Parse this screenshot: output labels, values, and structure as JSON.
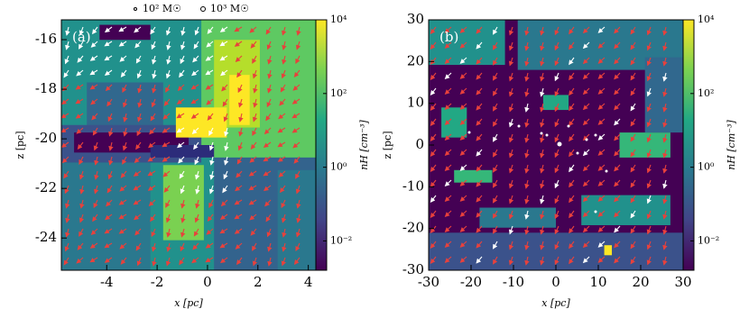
{
  "chart_data": [
    {
      "type": "density-map",
      "panel_label": "(a)",
      "xlabel": "x [pc]",
      "ylabel": "z [pc]",
      "xlim": [
        -5.8,
        4.3
      ],
      "ylim": [
        -25.3,
        -15.2
      ],
      "xticks": [
        -4,
        -2,
        0,
        2,
        4
      ],
      "yticks": [
        -24,
        -22,
        -20,
        -18,
        -16
      ],
      "markers": [
        "10² M☉",
        "10³ M☉"
      ],
      "colorbar": {
        "label": "nH [cm⁻³]",
        "scale": "log",
        "lim": [
          0.0016,
          10000
        ],
        "ticks": [
          {
            "value": 0.01,
            "label": "10⁻²"
          },
          {
            "value": 1,
            "label": "10⁰"
          },
          {
            "value": 100,
            "label": "10²"
          },
          {
            "value": 10000,
            "label": "10⁴"
          }
        ]
      }
    },
    {
      "type": "density-map",
      "panel_label": "(b)",
      "xlabel": "x [pc]",
      "ylabel": "z [pc]",
      "xlim": [
        -30,
        30
      ],
      "ylim": [
        -30,
        30
      ],
      "xticks": [
        -30,
        -20,
        -10,
        0,
        10,
        20,
        30
      ],
      "yticks": [
        -30,
        -20,
        -10,
        0,
        10,
        20,
        30
      ],
      "colorbar": {
        "label": "nH [cm⁻³]",
        "scale": "log",
        "lim": [
          0.0016,
          10000
        ],
        "ticks": [
          {
            "value": 0.01,
            "label": "10⁻²"
          },
          {
            "value": 1,
            "label": "10⁰"
          },
          {
            "value": 100,
            "label": "10²"
          },
          {
            "value": 10000,
            "label": "10⁴"
          }
        ]
      }
    }
  ]
}
